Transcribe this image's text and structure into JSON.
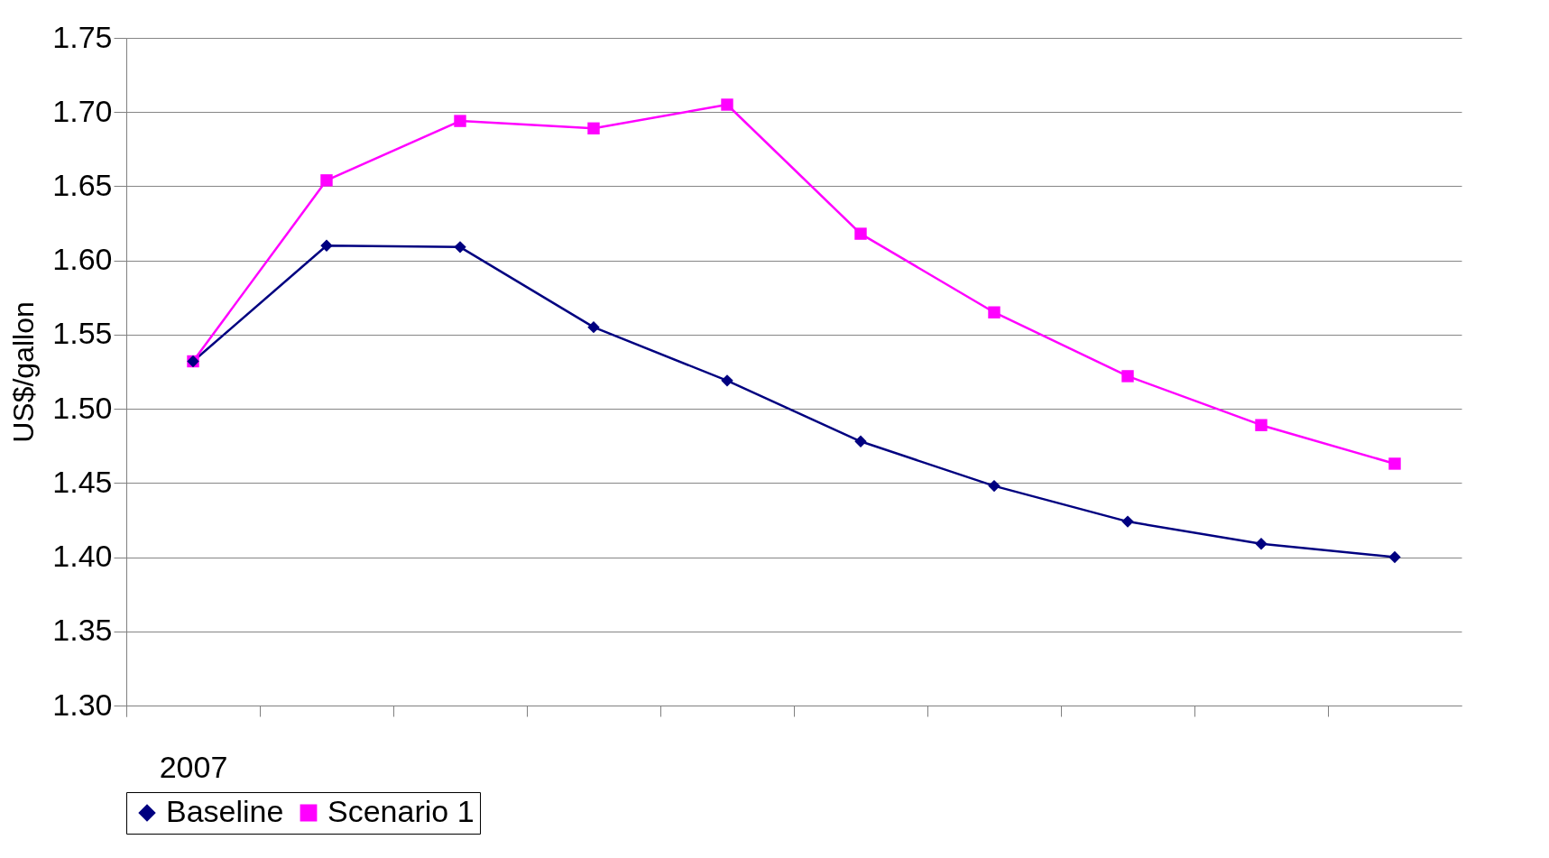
{
  "chart_data": {
    "type": "line",
    "ylabel": "US$/gallon",
    "categories": [
      "2007",
      null,
      null,
      null,
      null,
      null,
      null,
      null,
      null,
      null
    ],
    "series": [
      {
        "name": "Baseline",
        "color": "#000080",
        "marker": "diamond",
        "values": [
          1.532,
          1.61,
          1.609,
          1.555,
          1.519,
          1.478,
          1.448,
          1.424,
          1.409,
          1.4
        ]
      },
      {
        "name": "Scenario 1",
        "color": "#ff00ff",
        "marker": "square",
        "values": [
          1.532,
          1.654,
          1.694,
          1.689,
          1.705,
          1.618,
          1.565,
          1.522,
          1.489,
          1.463
        ]
      }
    ],
    "ylim": [
      1.3,
      1.75
    ],
    "yticks": [
      {
        "value": 1.3,
        "label": "1.30"
      },
      1.35,
      {
        "value": 1.4,
        "label": "1.40"
      },
      1.45,
      {
        "value": 1.5,
        "label": "1.50"
      },
      1.55,
      {
        "value": 1.6,
        "label": "1.60"
      },
      1.65,
      {
        "value": 1.7,
        "label": "1.70"
      },
      1.75
    ],
    "grid": "y",
    "legend": "bottom",
    "line_style": "solid"
  }
}
